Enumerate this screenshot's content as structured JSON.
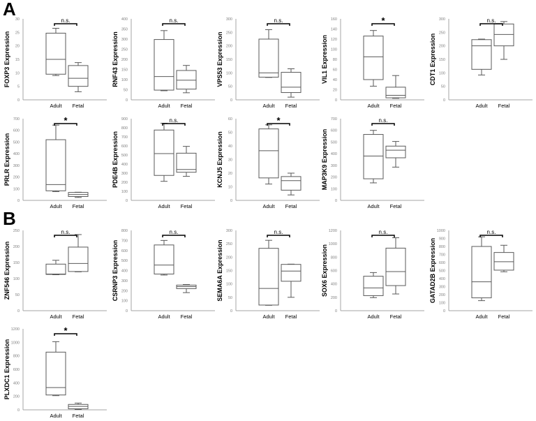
{
  "panels": {
    "A": "A",
    "B": "B"
  },
  "chart_data": [
    {
      "type": "box",
      "panel": "A",
      "title": "",
      "ylabel": "FOXP3 Expression",
      "ylim": [
        0,
        30
      ],
      "yticks": [
        0,
        5,
        10,
        15,
        20,
        25,
        30
      ],
      "categories": [
        "Adult",
        "Fetal"
      ],
      "significance": "n.s.",
      "boxes": [
        {
          "name": "Adult",
          "min": 9,
          "q1": 9.5,
          "median": 15,
          "q3": 24.7,
          "max": 26.5
        },
        {
          "name": "Fetal",
          "min": 3,
          "q1": 5,
          "median": 8,
          "q3": 12.7,
          "max": 13.8
        }
      ]
    },
    {
      "type": "box",
      "panel": "A",
      "title": "",
      "ylabel": "RNF43 Expression",
      "ylim": [
        0,
        400
      ],
      "yticks": [
        0,
        50,
        100,
        150,
        200,
        250,
        300,
        350,
        400
      ],
      "categories": [
        "Adult",
        "Fetal"
      ],
      "significance": "n.s.",
      "boxes": [
        {
          "name": "Adult",
          "min": 45,
          "q1": 48,
          "median": 115,
          "q3": 298,
          "max": 342
        },
        {
          "name": "Fetal",
          "min": 35,
          "q1": 53,
          "median": 97,
          "q3": 145,
          "max": 170
        }
      ]
    },
    {
      "type": "box",
      "panel": "A",
      "title": "",
      "ylabel": "VPS53 Expression",
      "ylim": [
        0,
        300
      ],
      "yticks": [
        0,
        50,
        100,
        150,
        200,
        250,
        300
      ],
      "categories": [
        "Adult",
        "Fetal"
      ],
      "significance": "n.s.",
      "boxes": [
        {
          "name": "Adult",
          "min": 83,
          "q1": 84,
          "median": 100,
          "q3": 225,
          "max": 260
        },
        {
          "name": "Fetal",
          "min": 10,
          "q1": 27,
          "median": 47,
          "q3": 102,
          "max": 115
        }
      ]
    },
    {
      "type": "box",
      "panel": "A",
      "title": "",
      "ylabel": "VIL1 Expression",
      "ylim": [
        0,
        160
      ],
      "yticks": [
        0,
        20,
        40,
        60,
        80,
        100,
        120,
        140,
        160
      ],
      "categories": [
        "Adult",
        "Fetal"
      ],
      "significance": "*",
      "boxes": [
        {
          "name": "Adult",
          "min": 27,
          "q1": 40,
          "median": 85,
          "q3": 126,
          "max": 137
        },
        {
          "name": "Fetal",
          "min": 3,
          "q1": 4,
          "median": 9,
          "q3": 25,
          "max": 48
        }
      ]
    },
    {
      "type": "box",
      "panel": "A",
      "title": "",
      "ylabel": "CDT1 Expression",
      "ylim": [
        0,
        300
      ],
      "yticks": [
        0,
        50,
        100,
        150,
        200,
        250,
        300
      ],
      "categories": [
        "Adult",
        "Fetal"
      ],
      "significance": "n.s.",
      "boxes": [
        {
          "name": "Adult",
          "min": 92,
          "q1": 113,
          "median": 200,
          "q3": 223,
          "max": 225
        },
        {
          "name": "Fetal",
          "min": 150,
          "q1": 200,
          "median": 242,
          "q3": 281,
          "max": 290
        }
      ]
    },
    {
      "type": "box",
      "panel": "A",
      "title": "",
      "ylabel": "PRLR Expression",
      "ylim": [
        0,
        700
      ],
      "yticks": [
        0,
        100,
        200,
        300,
        400,
        500,
        600,
        700
      ],
      "categories": [
        "Adult",
        "Fetal"
      ],
      "significance": "*",
      "boxes": [
        {
          "name": "Adult",
          "min": 75,
          "q1": 82,
          "median": 135,
          "q3": 520,
          "max": 645
        },
        {
          "name": "Fetal",
          "min": 25,
          "q1": 33,
          "median": 50,
          "q3": 68,
          "max": 70
        }
      ]
    },
    {
      "type": "box",
      "panel": "A",
      "title": "",
      "ylabel": "PDE4B Expression",
      "ylim": [
        0,
        900
      ],
      "yticks": [
        0,
        100,
        200,
        300,
        400,
        500,
        600,
        700,
        800,
        900
      ],
      "categories": [
        "Adult",
        "Fetal"
      ],
      "significance": "n.s.",
      "boxes": [
        {
          "name": "Adult",
          "min": 210,
          "q1": 275,
          "median": 515,
          "q3": 775,
          "max": 850
        },
        {
          "name": "Fetal",
          "min": 265,
          "q1": 310,
          "median": 340,
          "q3": 520,
          "max": 595
        }
      ]
    },
    {
      "type": "box",
      "panel": "A",
      "title": "",
      "ylabel": "KCNJ5 Expression",
      "ylim": [
        0,
        60
      ],
      "yticks": [
        0,
        10,
        20,
        30,
        40,
        50,
        60
      ],
      "categories": [
        "Adult",
        "Fetal"
      ],
      "significance": "*",
      "boxes": [
        {
          "name": "Adult",
          "min": 12,
          "q1": 16.5,
          "median": 36.5,
          "q3": 52.5,
          "max": 55.5
        },
        {
          "name": "Fetal",
          "min": 4,
          "q1": 7.5,
          "median": 14.5,
          "q3": 17.5,
          "max": 20
        }
      ]
    },
    {
      "type": "box",
      "panel": "A",
      "title": "",
      "ylabel": "MAP3K9 Expression",
      "ylim": [
        0,
        700
      ],
      "yticks": [
        0,
        100,
        200,
        300,
        400,
        500,
        600,
        700
      ],
      "categories": [
        "Adult",
        "Fetal"
      ],
      "significance": "n.s.",
      "boxes": [
        {
          "name": "Adult",
          "min": 150,
          "q1": 185,
          "median": 380,
          "q3": 565,
          "max": 600
        },
        {
          "name": "Fetal",
          "min": 285,
          "q1": 365,
          "median": 430,
          "q3": 465,
          "max": 505
        }
      ]
    },
    {
      "type": "box",
      "panel": "B",
      "title": "",
      "ylabel": "ZNF546 Expression",
      "ylim": [
        0,
        250
      ],
      "yticks": [
        0,
        50,
        100,
        150,
        200,
        250
      ],
      "categories": [
        "Adult",
        "Fetal"
      ],
      "significance": "n.s.",
      "boxes": [
        {
          "name": "Adult",
          "min": 112,
          "q1": 113,
          "median": 114,
          "q3": 145,
          "max": 157
        },
        {
          "name": "Fetal",
          "min": 121,
          "q1": 122,
          "median": 147,
          "q3": 198,
          "max": 237
        }
      ]
    },
    {
      "type": "box",
      "panel": "B",
      "title": "",
      "ylabel": "CSRNP3 Expression",
      "ylim": [
        0,
        800
      ],
      "yticks": [
        0,
        100,
        200,
        300,
        400,
        500,
        600,
        700,
        800
      ],
      "categories": [
        "Adult",
        "Fetal"
      ],
      "significance": "n.s.",
      "boxes": [
        {
          "name": "Adult",
          "min": 355,
          "q1": 365,
          "median": 455,
          "q3": 655,
          "max": 700
        },
        {
          "name": "Fetal",
          "min": 180,
          "q1": 220,
          "median": 240,
          "q3": 255,
          "max": 260
        }
      ]
    },
    {
      "type": "box",
      "panel": "B",
      "title": "",
      "ylabel": "SEMA6A Expression",
      "ylim": [
        0,
        300
      ],
      "yticks": [
        0,
        50,
        100,
        150,
        200,
        250,
        300
      ],
      "categories": [
        "Adult",
        "Fetal"
      ],
      "significance": "n.s.",
      "boxes": [
        {
          "name": "Adult",
          "min": 20,
          "q1": 21,
          "median": 83,
          "q3": 233,
          "max": 263
        },
        {
          "name": "Fetal",
          "min": 50,
          "q1": 110,
          "median": 148,
          "q3": 173,
          "max": 174
        }
      ]
    },
    {
      "type": "box",
      "panel": "B",
      "title": "",
      "ylabel": "SOX6 Expression",
      "ylim": [
        0,
        1200
      ],
      "yticks": [
        0,
        200,
        400,
        600,
        800,
        1000,
        1200
      ],
      "categories": [
        "Adult",
        "Fetal"
      ],
      "significance": "n.s.",
      "boxes": [
        {
          "name": "Adult",
          "min": 195,
          "q1": 225,
          "median": 340,
          "q3": 515,
          "max": 570
        },
        {
          "name": "Fetal",
          "min": 250,
          "q1": 375,
          "median": 585,
          "q3": 935,
          "max": 1090
        }
      ]
    },
    {
      "type": "box",
      "panel": "B",
      "title": "",
      "ylabel": "GATAD2B Expression",
      "ylim": [
        0,
        1000
      ],
      "yticks": [
        0,
        100,
        200,
        300,
        400,
        500,
        600,
        700,
        800,
        900,
        1000
      ],
      "categories": [
        "Adult",
        "Fetal"
      ],
      "significance": "n.s.",
      "boxes": [
        {
          "name": "Adult",
          "min": 125,
          "q1": 160,
          "median": 360,
          "q3": 800,
          "max": 920
        },
        {
          "name": "Fetal",
          "min": 485,
          "q1": 505,
          "median": 610,
          "q3": 725,
          "max": 815
        }
      ]
    },
    {
      "type": "box",
      "panel": "B",
      "title": "",
      "ylabel": "PLXDC1 Expression",
      "ylim": [
        0,
        1200
      ],
      "yticks": [
        0,
        200,
        400,
        600,
        800,
        1000,
        1200
      ],
      "categories": [
        "Adult",
        "Fetal"
      ],
      "significance": "*",
      "boxes": [
        {
          "name": "Adult",
          "min": 210,
          "q1": 220,
          "median": 330,
          "q3": 855,
          "max": 1010
        },
        {
          "name": "Fetal",
          "min": 5,
          "q1": 15,
          "median": 50,
          "q3": 80,
          "max": 100
        }
      ]
    }
  ]
}
